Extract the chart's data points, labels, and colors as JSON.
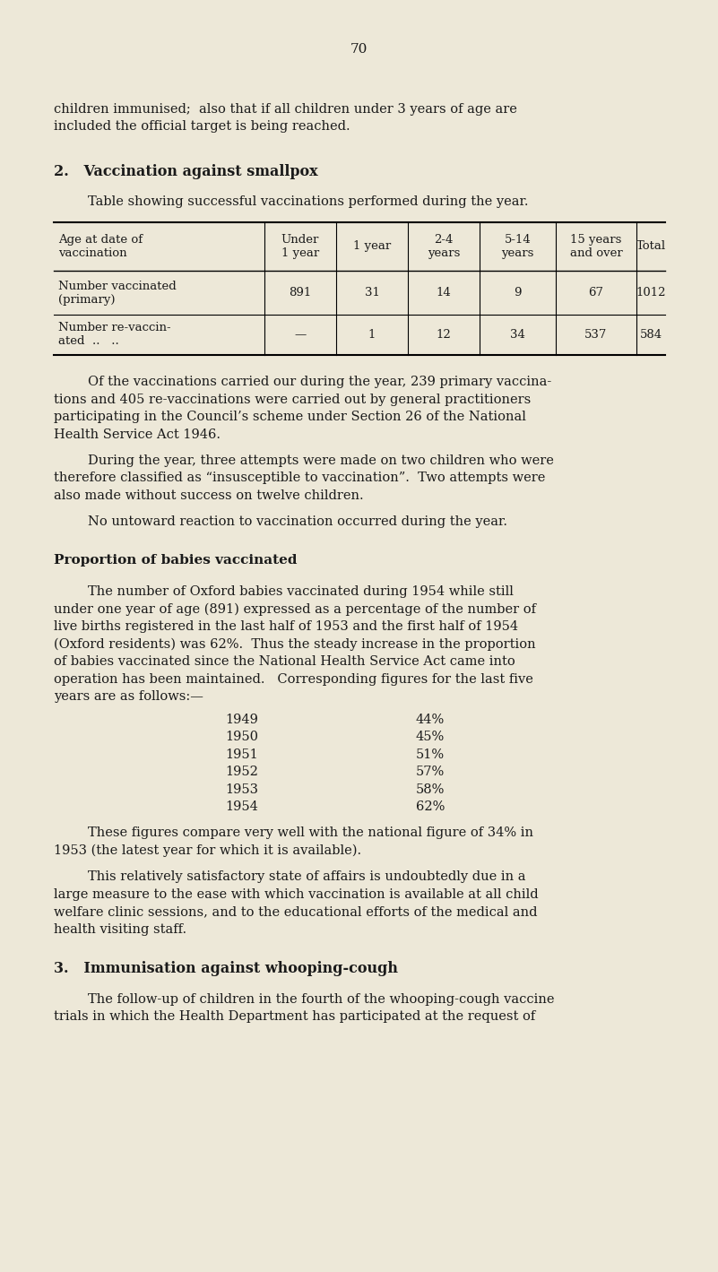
{
  "bg_color": "#ede8d8",
  "text_color": "#1a1a1a",
  "page_number": "70",
  "opening_text_line1": "children immunised;  also that if all children under 3 years of age are",
  "opening_text_line2": "included the official target is being reached.",
  "section2_heading": "2.   Vaccination against smallpox",
  "table_intro": "Table showing successful vaccinations performed during the year.",
  "col_header_0": "Age at date of\nvaccination",
  "col_header_1": "Under\n1 year",
  "col_header_2": "1 year",
  "col_header_3": "2-4\nyears",
  "col_header_4": "5-14\nyears",
  "col_header_5": "15 years\nand over",
  "col_header_6": "Total",
  "table_row1_label_l1": "Number vaccinated",
  "table_row1_label_l2": "(primary)",
  "table_row1_data": [
    "891",
    "31",
    "14",
    "9",
    "67",
    "1012"
  ],
  "table_row2_label_l1": "Number re-vaccin-",
  "table_row2_label_l2": "ated  ..   ..",
  "table_row2_data": [
    "—",
    "1",
    "12",
    "34",
    "537",
    "584"
  ],
  "para1_l1": "Of the vaccinations carried our during the year, 239 primary vaccina-",
  "para1_l2": "tions and 405 re-vaccinations were carried out by general practitioners",
  "para1_l3": "participating in the Council’s scheme under Section 26 of the National",
  "para1_l4": "Health Service Act 1946.",
  "para2_l1": "During the year, three attempts were made on two children who were",
  "para2_l2": "therefore classified as “insusceptible to vaccination”.  Two attempts were",
  "para2_l3": "also made without success on twelve children.",
  "para3": "No untoward reaction to vaccination occurred during the year.",
  "subheading": "Proportion of babies vaccinated",
  "para4_l1": "The number of Oxford babies vaccinated during 1954 while still",
  "para4_l2": "under one year of age (891) expressed as a percentage of the number of",
  "para4_l3": "live births registered in the last half of 1953 and the first half of 1954",
  "para4_l4": "(Oxford residents) was 62%.  Thus the steady increase in the proportion",
  "para4_l5": "of babies vaccinated since the National Health Service Act came into",
  "para4_l6": "operation has been maintained.   Corresponding figures for the last five",
  "para4_l7": "years are as follows:—",
  "year_data": [
    [
      "1949",
      "44%"
    ],
    [
      "1950",
      "45%"
    ],
    [
      "1951",
      "51%"
    ],
    [
      "1952",
      "57%"
    ],
    [
      "1953",
      "58%"
    ],
    [
      "1954",
      "62%"
    ]
  ],
  "para5_l1": "These figures compare very well with the national figure of 34% in",
  "para5_l2": "1953 (the latest year for which it is available).",
  "para6_l1": "This relatively satisfactory state of affairs is undoubtedly due in a",
  "para6_l2": "large measure to the ease with which vaccination is available at all child",
  "para6_l3": "welfare clinic sessions, and to the educational efforts of the medical and",
  "para6_l4": "health visiting staff.",
  "section3_heading": "3.   Immunisation against whooping-cough",
  "para7_l1": "The follow-up of children in the fourth of the whooping-cough vaccine",
  "para7_l2": "trials in which the Health Department has participated at the request of"
}
